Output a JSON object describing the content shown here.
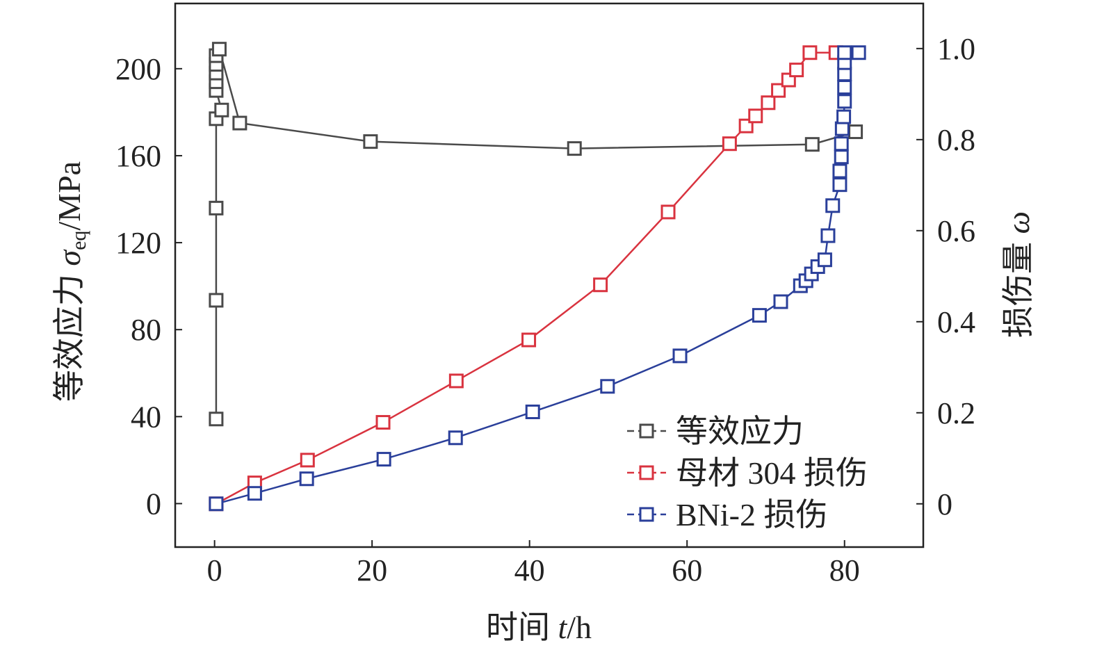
{
  "chart_data": {
    "type": "line",
    "title": "",
    "xlabel": {
      "prefix": "时间 ",
      "var": "t",
      "suffix": "/h"
    },
    "ylabel_left": {
      "prefix": "等效应力 ",
      "var": "σ",
      "sub": "eq",
      "suffix": "/MPa"
    },
    "ylabel_right": {
      "prefix": "损伤量 ",
      "var": "ω"
    },
    "xlim": [
      -5,
      90
    ],
    "ylim_left": [
      -20,
      230
    ],
    "ylim_right": [
      -0.095,
      1.099
    ],
    "xticks": [
      "0",
      "20",
      "40",
      "60",
      "80"
    ],
    "xtick_values": [
      0,
      20,
      40,
      60,
      80
    ],
    "yticks_left": [
      "0",
      "40",
      "80",
      "120",
      "160",
      "200"
    ],
    "ytick_left_values": [
      0,
      40,
      80,
      120,
      160,
      200
    ],
    "yticks_right": [
      "0",
      "0.2",
      "0.4",
      "0.6",
      "0.8",
      "1.0"
    ],
    "ytick_right_values": [
      0,
      0.2,
      0.4,
      0.6,
      0.8,
      1.0
    ],
    "grid": false,
    "legend_position": "bottom-right",
    "series": [
      {
        "name": "等效应力",
        "axis": "left",
        "color": "#4a4a4a",
        "x": [
          0.2,
          0.2,
          0.2,
          0.2,
          0.9,
          0.2,
          0.2,
          0.2,
          0.2,
          0.2,
          0.6,
          3.2,
          19.8,
          45.7,
          75.9,
          81.4
        ],
        "y": [
          38.9,
          93.5,
          135.9,
          177,
          181,
          190,
          194,
          198,
          202,
          206,
          209,
          175,
          166.5,
          163.3,
          165.2,
          171
        ]
      },
      {
        "name": "母材 304 损伤",
        "axis": "right",
        "color": "#d9333f",
        "x": [
          0.2,
          5.1,
          11.8,
          21.4,
          30.7,
          39.9,
          49.0,
          57.6,
          65.4,
          67.5,
          68.7,
          70.3,
          71.6,
          72.9,
          73.9,
          75.6,
          78.9
        ],
        "y": [
          0,
          0.046,
          0.096,
          0.179,
          0.27,
          0.36,
          0.481,
          0.641,
          0.791,
          0.83,
          0.852,
          0.881,
          0.908,
          0.931,
          0.953,
          0.991,
          0.991
        ]
      },
      {
        "name": "BNi-2 损伤",
        "axis": "right",
        "color": "#2a3f9a",
        "x": [
          0.2,
          5.1,
          11.7,
          21.5,
          30.6,
          40.4,
          49.9,
          59.1,
          69.2,
          71.9,
          74.4,
          75.1,
          75.8,
          76.6,
          77.5,
          77.9,
          78.5,
          79.4,
          79.4,
          79.6,
          79.6,
          79.7,
          79.9,
          80.0,
          80.0,
          80.0,
          80.0,
          80.0,
          81.8
        ],
        "y": [
          0,
          0.023,
          0.055,
          0.098,
          0.145,
          0.202,
          0.258,
          0.325,
          0.414,
          0.444,
          0.479,
          0.49,
          0.505,
          0.521,
          0.536,
          0.589,
          0.655,
          0.701,
          0.731,
          0.762,
          0.791,
          0.824,
          0.85,
          0.884,
          0.915,
          0.944,
          0.969,
          0.991,
          0.991
        ]
      }
    ]
  }
}
